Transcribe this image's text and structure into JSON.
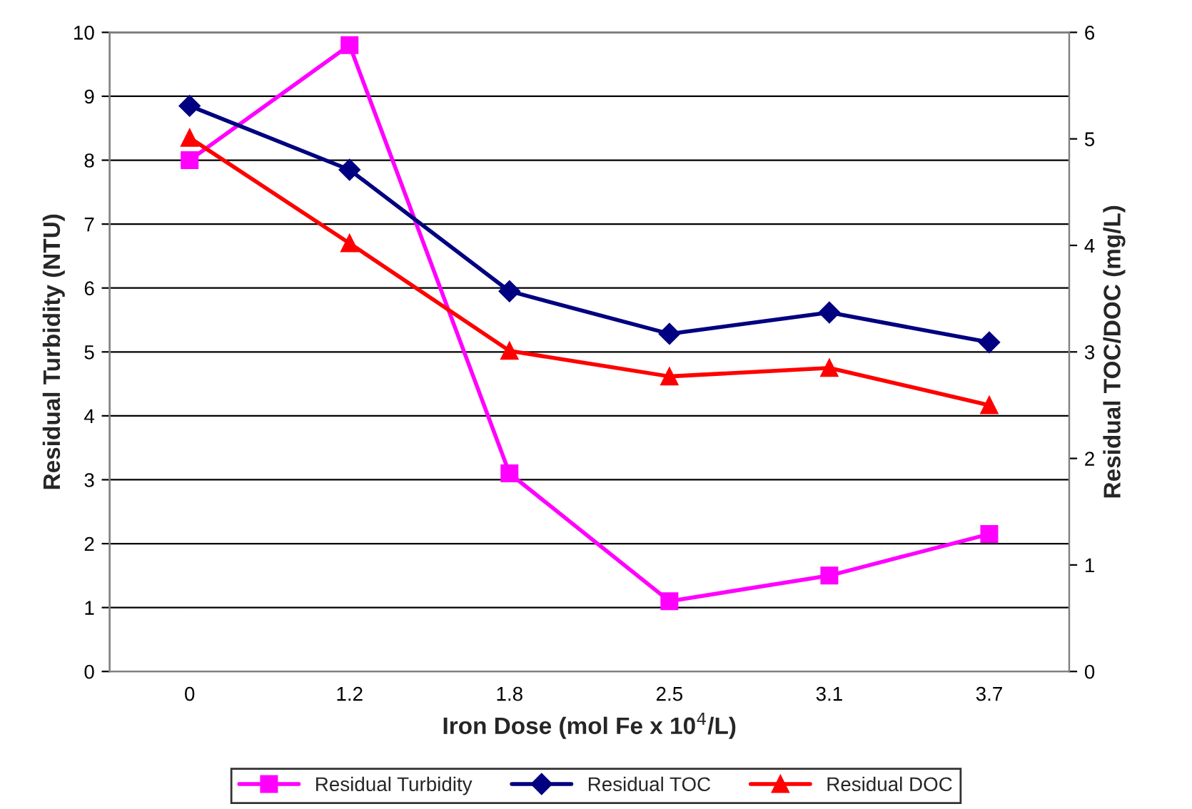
{
  "chart_data": {
    "type": "line",
    "xlabel": "Iron Dose (mol Fe x 10$^{4}$/L)",
    "ylabel": "Residual Turbidity (NTU)",
    "y2label": "Residual TOC/DOC (mg/L)",
    "categories": [
      "0",
      "1.2",
      "1.8",
      "2.5",
      "3.1",
      "3.7"
    ],
    "series": [
      {
        "name": "Residual Turbidity",
        "color": "#ff00ff",
        "marker": "square",
        "values": [
          8.0,
          9.8,
          3.1,
          1.1,
          1.5,
          2.15
        ]
      },
      {
        "name": "Residual TOC",
        "color": "#000080",
        "marker": "diamond",
        "axis": "y2",
        "values": [
          5.31,
          4.71,
          3.57,
          3.17,
          3.37,
          3.09
        ]
      },
      {
        "name": "Residual DOC",
        "color": "#ff0000",
        "marker": "triangle",
        "axis": "y2",
        "values": [
          5.01,
          4.02,
          3.01,
          2.77,
          2.85,
          2.5
        ]
      }
    ],
    "ylim": [
      0,
      10
    ],
    "yticks": [
      0,
      1,
      2,
      3,
      4,
      5,
      6,
      7,
      8,
      9,
      10
    ],
    "y2lim": [
      0,
      6
    ],
    "y2ticks": [
      0,
      1,
      2,
      3,
      4,
      5,
      6
    ],
    "grid": "y",
    "legend": "bottom",
    "line_style": "solid"
  }
}
